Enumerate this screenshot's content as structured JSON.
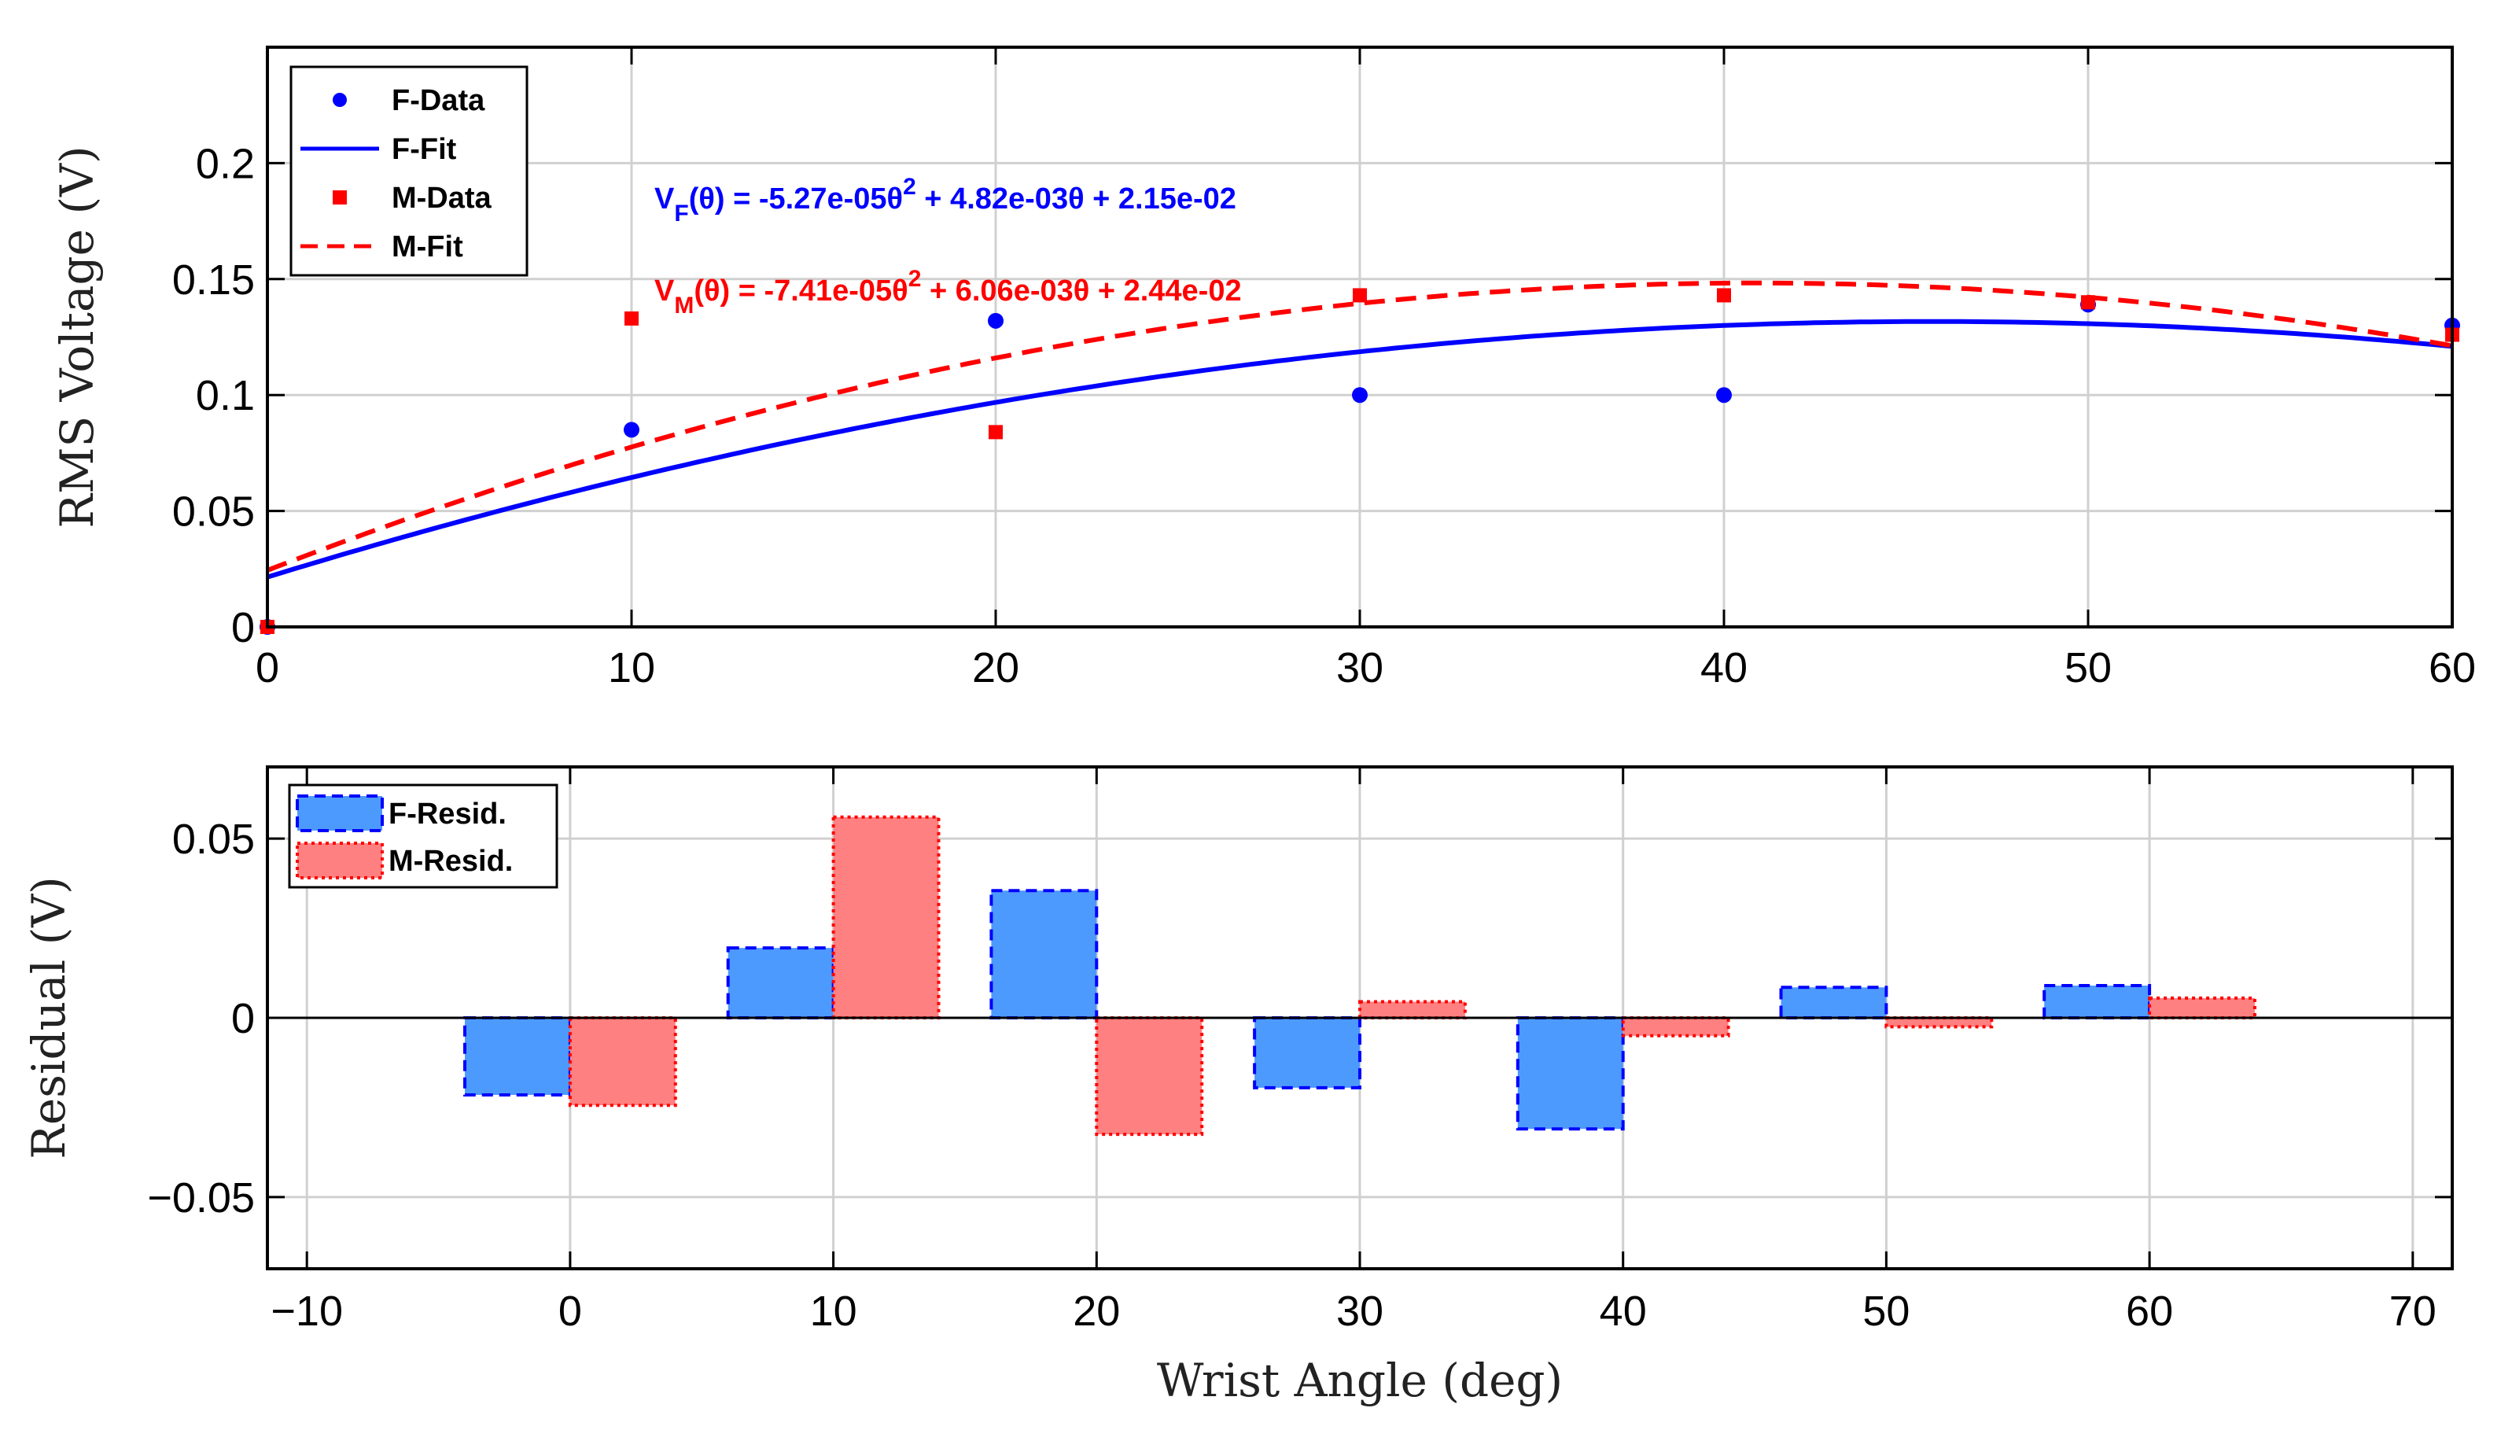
{
  "chart_data": [
    {
      "type": "scatter",
      "panel": "top",
      "xlabel": "",
      "ylabel": "RMS Voltage (V)",
      "xlim": [
        0,
        60
      ],
      "ylim": [
        0,
        0.25
      ],
      "xticks": [
        "0",
        "10",
        "20",
        "30",
        "40",
        "50",
        "60"
      ],
      "yticks": [
        "0",
        "0.05",
        "0.1",
        "0.15",
        "0.2"
      ],
      "grid": true,
      "legend_position": "top-left",
      "series": [
        {
          "name": "F-Data",
          "kind": "points",
          "color": "#0000ff",
          "x": [
            0,
            10,
            20,
            30,
            40,
            50,
            60
          ],
          "y": [
            0.0,
            0.085,
            0.132,
            0.1,
            0.1,
            0.139,
            0.13
          ]
        },
        {
          "name": "F-Fit",
          "kind": "fit",
          "color": "#0000ff",
          "style": "solid",
          "coefficients": [
            -5.27e-05,
            0.00482,
            0.0215
          ]
        },
        {
          "name": "M-Data",
          "kind": "points",
          "color": "#ff0000",
          "x": [
            0,
            10,
            20,
            30,
            40,
            50,
            60
          ],
          "y": [
            0.0,
            0.133,
            0.084,
            0.143,
            0.143,
            0.14,
            0.126
          ]
        },
        {
          "name": "M-Fit",
          "kind": "fit",
          "color": "#ff0000",
          "style": "dashed",
          "coefficients": [
            -7.41e-05,
            0.00606,
            0.0244
          ]
        }
      ],
      "annotations": [
        {
          "id": "vf",
          "color": "#0000ff",
          "head": "V",
          "sub": "F",
          "pre": "(θ) = -5.27e-05θ",
          "sup": "2",
          "post": " + 4.82e-03θ + 2.15e-02"
        },
        {
          "id": "vm",
          "color": "#ff0000",
          "head": "V",
          "sub": "M",
          "pre": "(θ) = -7.41e-05θ",
          "sup": "2",
          "post": " + 6.06e-03θ + 2.44e-02"
        }
      ]
    },
    {
      "type": "bar",
      "panel": "bottom",
      "xlabel": "Wrist Angle (deg)",
      "ylabel": "Residual (V)",
      "xlim": [
        -11.5,
        71.5
      ],
      "ylim": [
        -0.07,
        0.07
      ],
      "xticks": [
        "−10",
        "0",
        "10",
        "20",
        "30",
        "40",
        "50",
        "60",
        "70"
      ],
      "yticks": [
        "−0.05",
        "0",
        "0.05"
      ],
      "grid": true,
      "legend_position": "top-left",
      "categories": [
        0,
        10,
        20,
        30,
        40,
        50,
        60
      ],
      "series": [
        {
          "name": "F-Resid.",
          "color": "#4d9aff",
          "edge": "#0000ff",
          "edge_style": "dashed",
          "values": [
            -0.0215,
            0.0195,
            0.0355,
            -0.0195,
            -0.031,
            0.0085,
            0.009
          ]
        },
        {
          "name": "M-Resid.",
          "color": "#ff8080",
          "edge": "#ff0000",
          "edge_style": "dotted",
          "values": [
            -0.0244,
            0.056,
            -0.0325,
            0.0045,
            -0.005,
            -0.0025,
            0.0055
          ]
        }
      ]
    }
  ]
}
